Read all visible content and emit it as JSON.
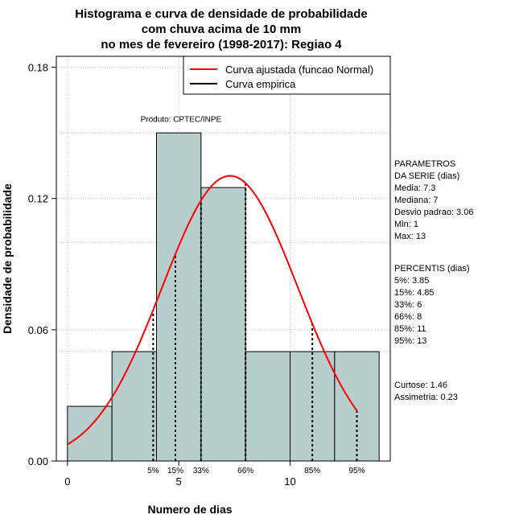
{
  "chart_data": {
    "type": "bar",
    "title_lines": [
      "Histograma e curva de densidade de probabilidade",
      "com chuva acima de 10 mm",
      "no mes de fevereiro (1998-2017): Regiao 4"
    ],
    "xlabel": "Numero de dias",
    "ylabel": "Densidade de probabilidade",
    "xlim": [
      -0.5,
      14.5
    ],
    "ylim": [
      0,
      0.185
    ],
    "x_ticks": [
      0,
      5,
      10
    ],
    "y_ticks": [
      0.0,
      0.06,
      0.12,
      0.18
    ],
    "y_tick_labels": [
      "0.00",
      "0.06",
      "0.12",
      "0.18"
    ],
    "grid": true,
    "bins": [
      {
        "start": 0,
        "end": 2,
        "density": 0.025
      },
      {
        "start": 2,
        "end": 4,
        "density": 0.05
      },
      {
        "start": 4,
        "end": 6,
        "density": 0.15
      },
      {
        "start": 6,
        "end": 8,
        "density": 0.125
      },
      {
        "start": 8,
        "end": 10,
        "density": 0.05
      },
      {
        "start": 10,
        "end": 12,
        "density": 0.05
      },
      {
        "start": 12,
        "end": 14,
        "density": 0.05
      }
    ],
    "normal_curve": {
      "mean": 7.3,
      "sd": 3.06,
      "x_from": 0,
      "x_to": 13
    },
    "percentiles": [
      {
        "label": "5%",
        "x": 3.85
      },
      {
        "label": "15%",
        "x": 4.85
      },
      {
        "label": "33%",
        "x": 6
      },
      {
        "label": "66%",
        "x": 8
      },
      {
        "label": "85%",
        "x": 11
      },
      {
        "label": "95%",
        "x": 13
      }
    ],
    "legend": [
      {
        "label": "Curva ajustada (funcao Normal)",
        "color": "#ff0000"
      },
      {
        "label": "Curva empirica",
        "color": "#000000"
      }
    ],
    "legend_position": "top-right",
    "annotation": "Produto: CPTEC/INPE",
    "bar_color": "#b7cecf",
    "curve_color": "#ff0000"
  },
  "side_panel": {
    "parametros": [
      "PARAMETROS",
      "DA SERIE (dias)",
      "   Media: 7.3",
      "   Mediana: 7",
      "   Desvio padrao: 3.06",
      "   Min: 1",
      "   Max: 13"
    ],
    "percentis": [
      "PERCENTIS (dias)",
      "   5%: 3.85",
      "   15%: 4.85",
      "   33%: 6",
      "   66%: 8",
      "   85%: 11",
      "   95%: 13"
    ],
    "stats": [
      "   Curtose: 1.46",
      "Assimetria: 0.23"
    ]
  }
}
